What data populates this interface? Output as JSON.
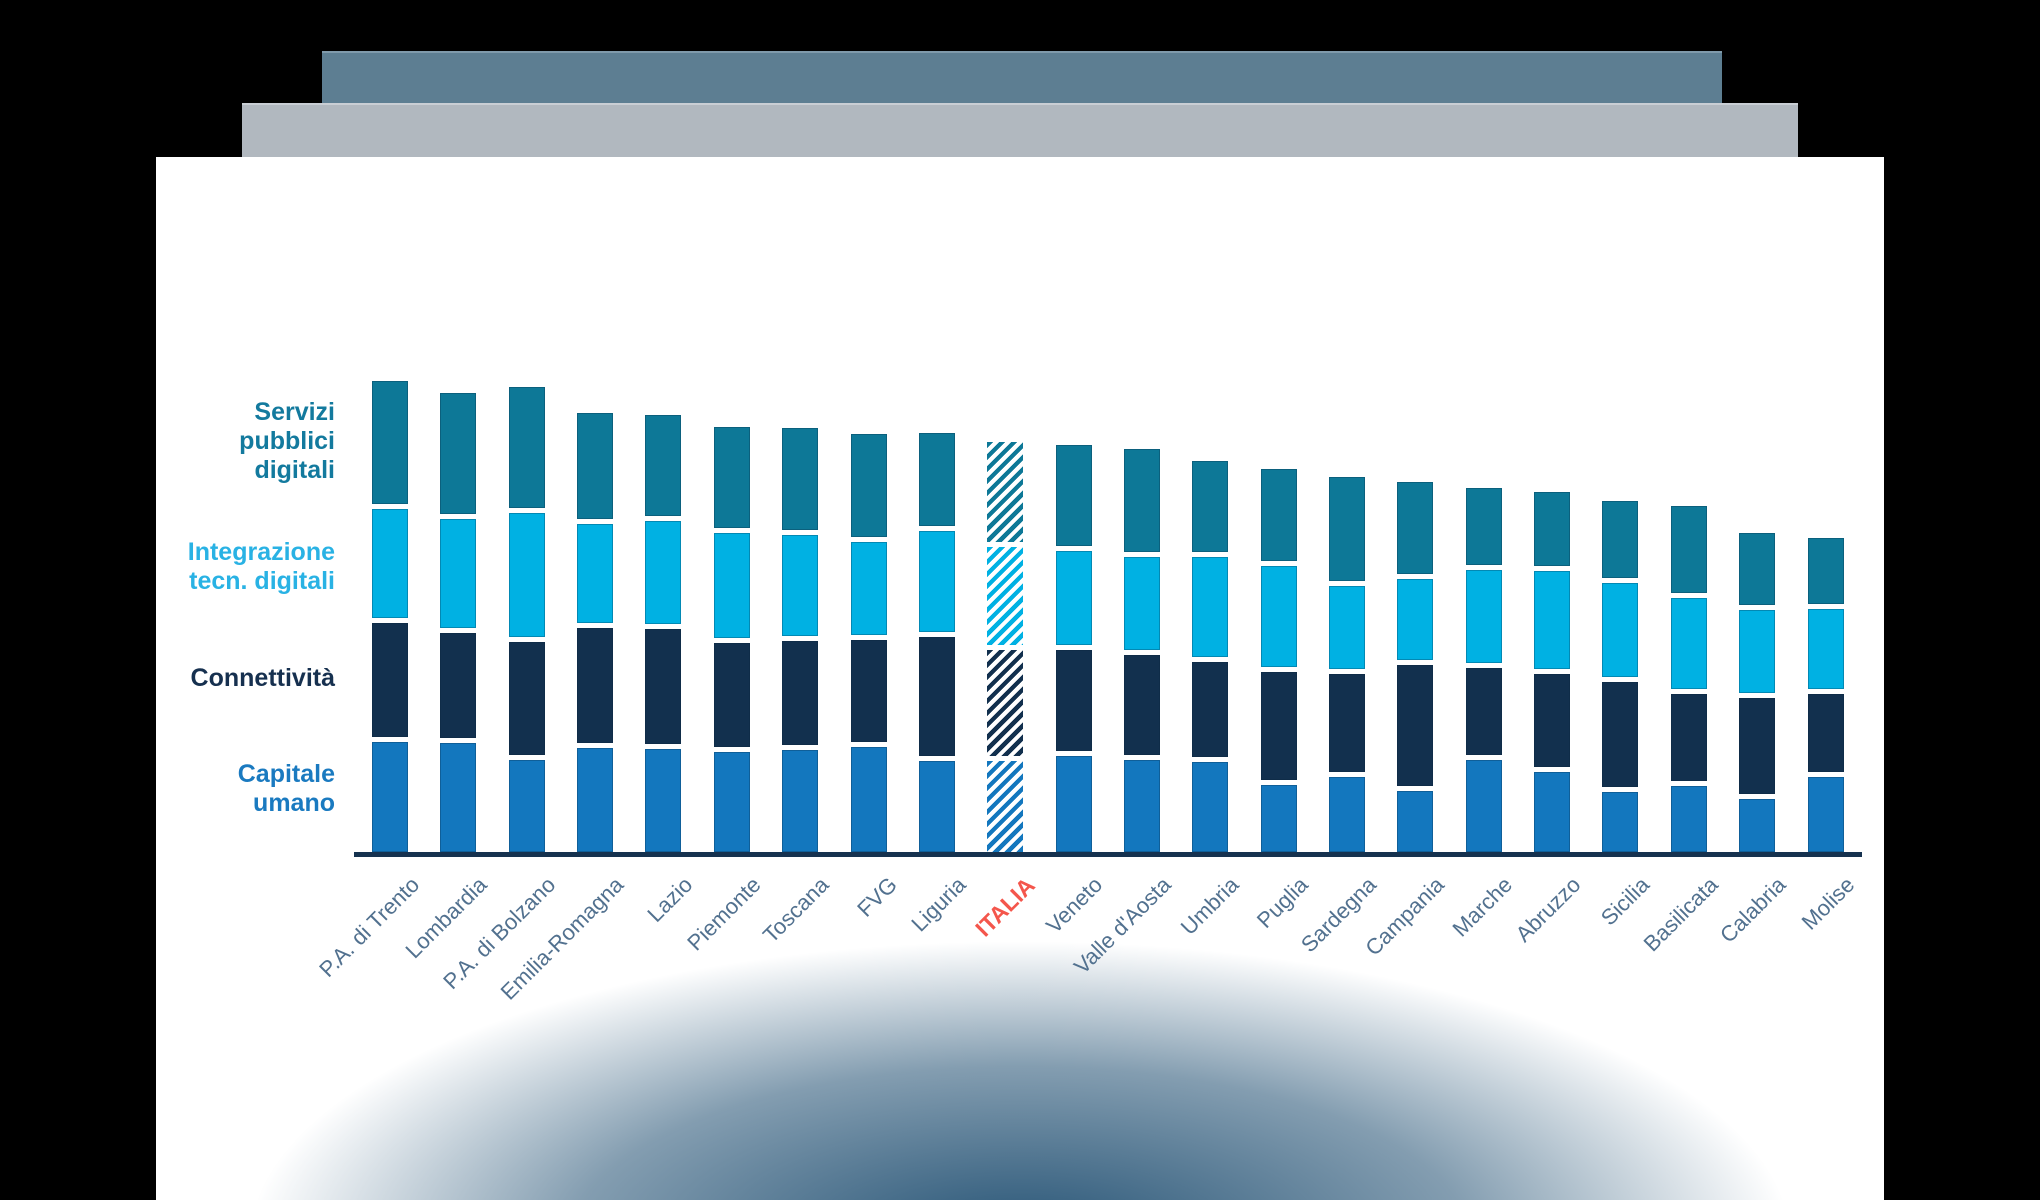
{
  "deck": {
    "background": "#000000",
    "back_page_color": "#5d7e92",
    "middle_page_color": "#b1b8bf",
    "slide_color": "#ffffff",
    "bottom_glow_color": "#1e4d70"
  },
  "legend": {
    "items": [
      {
        "label": "Servizi\npubblici\ndigitali",
        "color": "#137a9e"
      },
      {
        "label": "Integrazione\ntecn. digitali",
        "color": "#29b2e4"
      },
      {
        "label": "Connettività",
        "color": "#16304f"
      },
      {
        "label": "Capitale\numano",
        "color": "#1a7ac0"
      }
    ]
  },
  "chart_data": {
    "type": "bar",
    "stacked": true,
    "title": "",
    "xlabel": "",
    "ylabel": "",
    "value_unit": "relative segment height in px (no numeric axis shown in figure)",
    "grid": false,
    "legend_position": "left",
    "y_axis": {
      "visible": false
    },
    "x_axis": {
      "line_color": "#16324f",
      "label_color": "#52718f",
      "label_rotation_deg": -45
    },
    "categories": [
      "P.A. di Trento",
      "Lombardia",
      "P.A. di Bolzano",
      "Emilia-Romagna",
      "Lazio",
      "Piemonte",
      "Toscana",
      "FVG",
      "Liguria",
      "ITALIA",
      "Veneto",
      "Valle d'Aosta",
      "Umbria",
      "Puglia",
      "Sardegna",
      "Campania",
      "Marche",
      "Abruzzo",
      "Sicilia",
      "Basilicata",
      "Calabria",
      "Molise"
    ],
    "highlight": {
      "category": "ITALIA",
      "label_color": "#f4564c",
      "style": "diagonal-hatch"
    },
    "series": [
      {
        "name": "Capitale umano",
        "color": "#1377be",
        "values": [
          110,
          109,
          92,
          104,
          103,
          100,
          102,
          105,
          91,
          91,
          96,
          92,
          90,
          67,
          75,
          61,
          92,
          80,
          60,
          66,
          53,
          75
        ]
      },
      {
        "name": "Connettività",
        "color": "#12304e",
        "values": [
          114,
          105,
          113,
          115,
          115,
          104,
          104,
          102,
          119,
          106,
          101,
          100,
          95,
          108,
          98,
          121,
          87,
          93,
          105,
          87,
          96,
          78
        ]
      },
      {
        "name": "Integrazione tecn. digitali",
        "color": "#00b1e3",
        "values": [
          109,
          109,
          124,
          99,
          103,
          105,
          101,
          93,
          101,
          98,
          94,
          93,
          100,
          101,
          83,
          81,
          93,
          98,
          94,
          91,
          83,
          80
        ]
      },
      {
        "name": "Servizi pubblici digitali",
        "color": "#0d7897",
        "values": [
          123,
          121,
          121,
          106,
          101,
          101,
          102,
          103,
          93,
          100,
          101,
          103,
          91,
          92,
          104,
          92,
          77,
          74,
          77,
          87,
          72,
          66
        ]
      }
    ]
  }
}
